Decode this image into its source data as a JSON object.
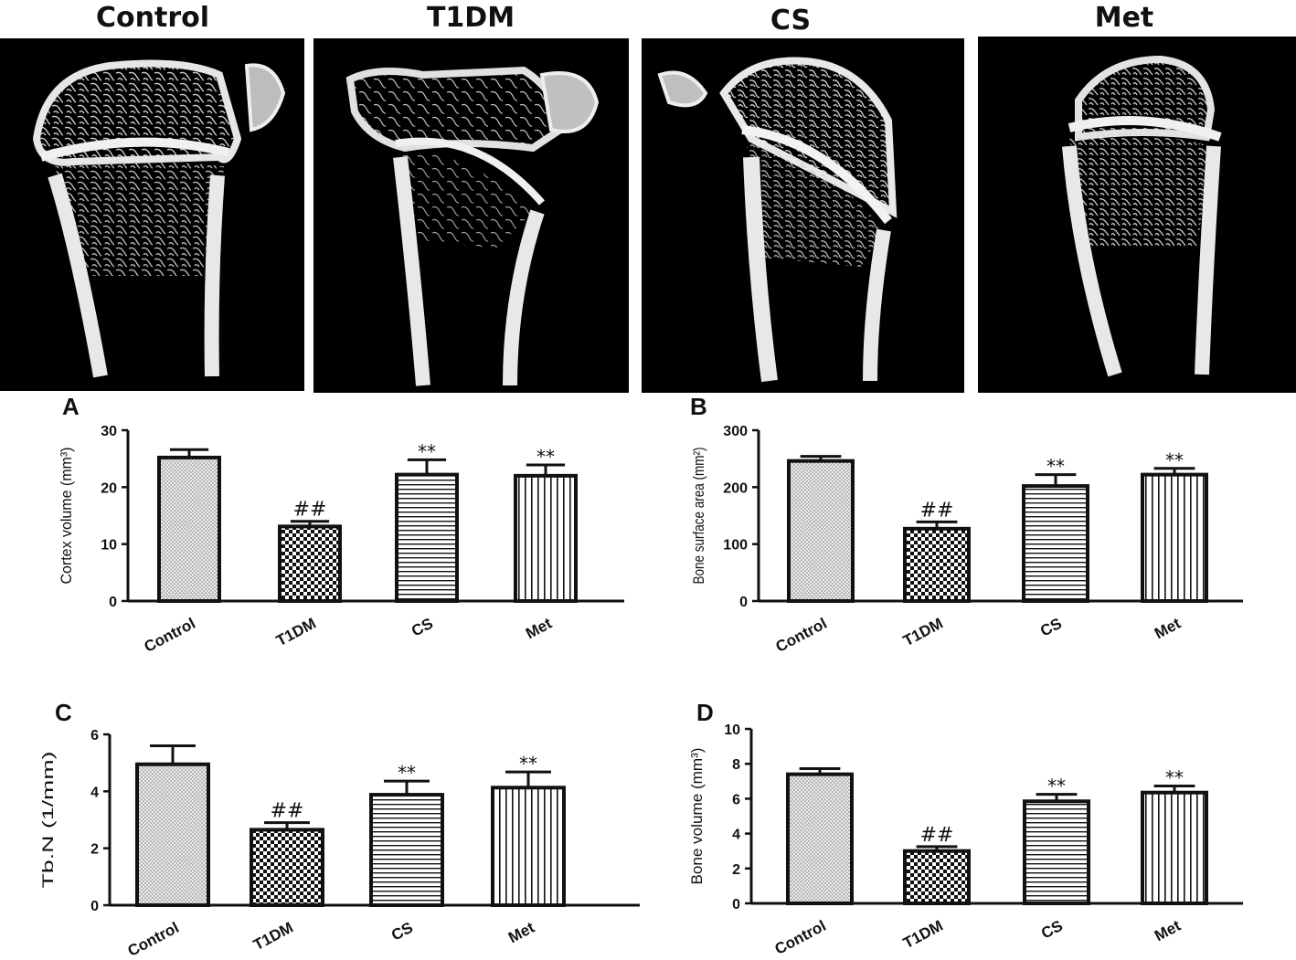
{
  "figure": {
    "image_titles": [
      "Control",
      "T1DM",
      "CS",
      "Met"
    ]
  },
  "chart_data": [
    {
      "panel": "A",
      "type": "bar",
      "categories": [
        "Control",
        "T1DM",
        "CS",
        "Met"
      ],
      "values": [
        25.2,
        13.1,
        22.2,
        22.0
      ],
      "errors": [
        1.4,
        0.9,
        2.6,
        1.9
      ],
      "annotations": [
        "",
        "##",
        "**",
        "**"
      ],
      "ylabel": "Cortex volume (mm³)",
      "ylim": [
        0,
        30
      ],
      "yticks": [
        0,
        10,
        20,
        30
      ],
      "patterns": [
        "dots",
        "checker",
        "horizontal",
        "vertical"
      ]
    },
    {
      "panel": "B",
      "type": "bar",
      "categories": [
        "Control",
        "T1DM",
        "CS",
        "Met"
      ],
      "values": [
        246,
        127,
        202,
        222
      ],
      "errors": [
        8,
        12,
        20,
        11
      ],
      "annotations": [
        "",
        "##",
        "**",
        "**"
      ],
      "ylabel": "Bone surface area (mm²)",
      "ylim": [
        0,
        300
      ],
      "yticks": [
        0,
        100,
        200,
        300
      ],
      "patterns": [
        "dots",
        "checker",
        "horizontal",
        "vertical"
      ]
    },
    {
      "panel": "C",
      "type": "bar",
      "categories": [
        "Control",
        "T1DM",
        "CS",
        "Met"
      ],
      "values": [
        4.95,
        2.65,
        3.88,
        4.13
      ],
      "errors": [
        0.65,
        0.25,
        0.48,
        0.55
      ],
      "annotations": [
        "",
        "##",
        "**",
        "**"
      ],
      "ylabel": "Tb.N  (1/mm)",
      "ylim": [
        0,
        6
      ],
      "yticks": [
        0,
        2,
        4,
        6
      ],
      "patterns": [
        "dots",
        "checker",
        "horizontal",
        "vertical"
      ]
    },
    {
      "panel": "D",
      "type": "bar",
      "categories": [
        "Control",
        "T1DM",
        "CS",
        "Met"
      ],
      "values": [
        7.4,
        3.0,
        5.85,
        6.35
      ],
      "errors": [
        0.32,
        0.25,
        0.4,
        0.38
      ],
      "annotations": [
        "",
        "##",
        "**",
        "**"
      ],
      "ylabel": "Bone volume (mm³)",
      "ylim": [
        0,
        10
      ],
      "yticks": [
        0,
        2,
        4,
        6,
        8,
        10
      ],
      "patterns": [
        "dots",
        "checker",
        "horizontal",
        "vertical"
      ]
    }
  ]
}
